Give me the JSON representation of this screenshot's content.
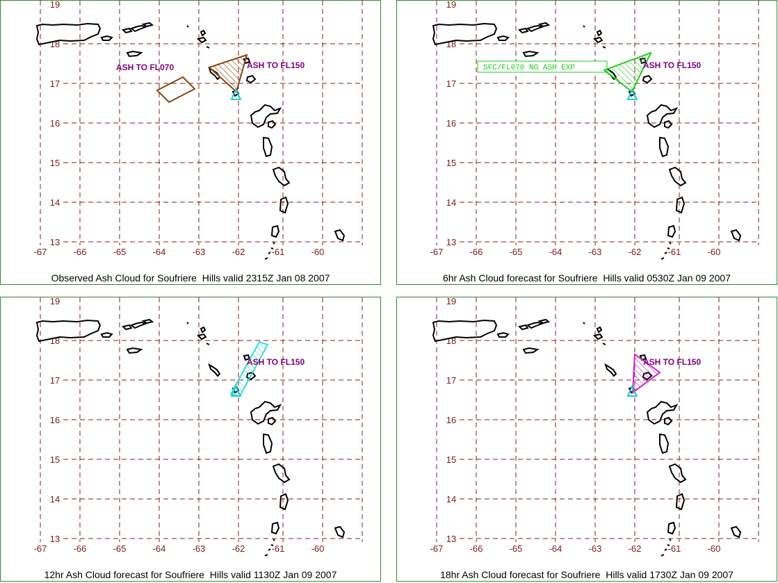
{
  "map": {
    "lon_ticks": [
      "-67",
      "-66",
      "-65",
      "-64",
      "-63",
      "-62",
      "-61",
      "-60"
    ],
    "lat_ticks": [
      "19",
      "18",
      "17",
      "16",
      "15",
      "14",
      "13"
    ],
    "grid_color": "#8b1a1a",
    "tick_color": "#7a1a1a",
    "border_color": "#2e8b2e"
  },
  "panels": [
    {
      "caption": "Observed Ash Cloud for Soufriere  Hills valid 2315Z Jan 08 2007",
      "labels": [
        "ASH TO FL070",
        "ASH TO FL150"
      ],
      "cloud_color": "#8b4513"
    },
    {
      "caption": "6hr Ash Cloud forecast for Soufriere  Hills valid 0530Z Jan 09 2007",
      "labels": [
        "SFC/FL070 NO ASH EXP",
        "ASH TO FL150"
      ],
      "cloud_color": "#22cc22"
    },
    {
      "caption": "12hr Ash Cloud forecast for Soufriere  Hills valid 1130Z Jan 09 2007",
      "labels": [
        "ASH TO FL150"
      ],
      "cloud_color": "#33dddd"
    },
    {
      "caption": "18hr Ash Cloud forecast for Soufriere  Hills valid 1730Z Jan 09 2007",
      "labels": [
        "ASH TO FL150"
      ],
      "cloud_color": "#cc22cc"
    }
  ],
  "volcano_marker_color": "#22cccc",
  "label_color": "#800080"
}
